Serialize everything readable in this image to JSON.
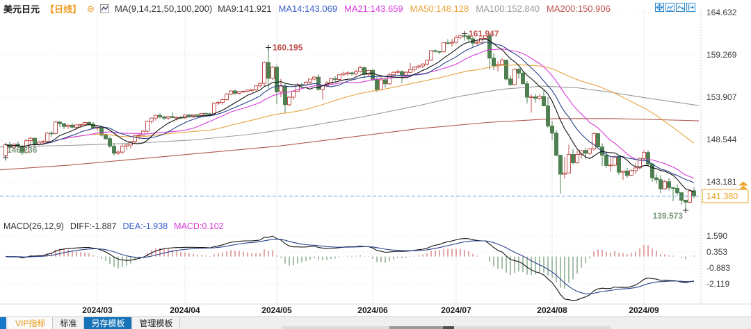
{
  "header": {
    "symbol": "美元日元",
    "period": "【日线】",
    "collapse_icon": "⊖",
    "ma_group_label": "MA(9,14,21,50,100,200)",
    "ma_values": [
      {
        "label": "MA9:141.921",
        "color": "#333333"
      },
      {
        "label": "MA14:143.069",
        "color": "#3a5fcd"
      },
      {
        "label": "MA21:143.659",
        "color": "#d93ad9"
      },
      {
        "label": "MA50:148.128",
        "color": "#e8a33c"
      },
      {
        "label": "MA100:152.840",
        "color": "#999999"
      },
      {
        "label": "MA200:150.906",
        "color": "#c0504d"
      }
    ]
  },
  "toolbar_icons": [
    "move-crosshair-icon",
    "indicator-pane-icon",
    "indicator-arrow-icon",
    "exit-pane-icon"
  ],
  "macd_header": {
    "items": [
      {
        "label": "MACD(26,12,9)",
        "color": "#333333"
      },
      {
        "label": "DIFF:-1.887",
        "color": "#333333"
      },
      {
        "label": "DEA:-1.938",
        "color": "#3a5fcd"
      },
      {
        "label": "MACD:0.102",
        "color": "#d93ad9"
      }
    ]
  },
  "tabs": {
    "items": [
      {
        "label": "VIP指标"
      },
      {
        "label": "标准"
      },
      {
        "label": "另存模板"
      },
      {
        "label": "管理模板"
      }
    ]
  },
  "chart_data": {
    "type": "candlestick",
    "title": "USD/JPY daily chart with MA(9,14,21,50,100,200) overlays and MACD(26,12,9) sub-chart",
    "y_axis_labels": [
      "164.632",
      "159.269",
      "153.907",
      "148.544",
      "143.181"
    ],
    "y_axis_values": [
      164.632,
      159.269,
      153.907,
      148.544,
      143.181
    ],
    "current_price": 141.38,
    "current_price_label": "141.380",
    "x_axis_labels": [
      "2024/03",
      "2024/04",
      "2024/05",
      "2024/06",
      "2024/07",
      "2024/08",
      "2024/09"
    ],
    "month_start_indices": [
      22,
      43,
      65,
      88,
      108,
      131,
      153
    ],
    "colors": {
      "up": "#c0504d",
      "down": "#4e8052",
      "price_line": "#5a9bd4",
      "price_box": "#e8a020",
      "annotation_high": "#c0504d",
      "annotation_low": "#7d9b7d"
    },
    "candles_ohlc": [
      [
        146.45,
        148.15,
        146.236,
        147.9
      ],
      [
        147.9,
        148.25,
        147.35,
        147.55
      ],
      [
        147.55,
        148.05,
        147.3,
        147.95
      ],
      [
        147.95,
        148.3,
        147.55,
        147.7
      ],
      [
        147.7,
        147.85,
        146.6,
        146.9
      ],
      [
        146.9,
        148.55,
        146.75,
        148.4
      ],
      [
        148.4,
        148.9,
        148.0,
        148.7
      ],
      [
        148.7,
        148.8,
        147.6,
        147.95
      ],
      [
        147.95,
        148.4,
        147.8,
        148.2
      ],
      [
        148.2,
        148.5,
        147.9,
        148.3
      ],
      [
        148.3,
        149.5,
        148.2,
        149.35
      ],
      [
        149.35,
        149.6,
        148.9,
        149.3
      ],
      [
        149.3,
        150.88,
        149.2,
        150.75
      ],
      [
        150.75,
        150.9,
        150.1,
        150.55
      ],
      [
        150.55,
        150.65,
        149.85,
        150.2
      ],
      [
        150.2,
        150.45,
        149.9,
        150.35
      ],
      [
        150.35,
        150.6,
        149.95,
        150.1
      ],
      [
        150.1,
        150.45,
        149.75,
        150.4
      ],
      [
        150.4,
        150.55,
        150.0,
        150.45
      ],
      [
        150.45,
        150.8,
        150.2,
        150.7
      ],
      [
        150.7,
        150.85,
        150.3,
        150.5
      ],
      [
        150.5,
        150.75,
        149.9,
        149.98
      ],
      [
        149.98,
        150.3,
        149.6,
        150.1
      ],
      [
        150.1,
        150.2,
        148.9,
        149.1
      ],
      [
        149.1,
        149.4,
        148.5,
        148.65
      ],
      [
        148.65,
        148.9,
        147.5,
        147.7
      ],
      [
        147.7,
        148.1,
        146.48,
        146.8
      ],
      [
        146.8,
        147.2,
        146.55,
        146.95
      ],
      [
        146.95,
        147.95,
        146.7,
        147.7
      ],
      [
        147.7,
        148.0,
        147.2,
        147.85
      ],
      [
        147.85,
        148.35,
        147.4,
        148.3
      ],
      [
        148.3,
        149.15,
        148.0,
        149.05
      ],
      [
        149.05,
        149.35,
        148.55,
        149.1
      ],
      [
        149.1,
        149.75,
        148.9,
        149.6
      ],
      [
        149.6,
        150.95,
        149.3,
        150.85
      ],
      [
        150.85,
        151.35,
        150.55,
        151.25
      ],
      [
        151.25,
        151.65,
        150.95,
        151.6
      ],
      [
        151.6,
        151.85,
        151.2,
        151.4
      ],
      [
        151.4,
        151.55,
        151.0,
        151.25
      ],
      [
        151.25,
        151.55,
        151.05,
        151.45
      ],
      [
        151.45,
        151.97,
        151.3,
        151.32
      ],
      [
        151.32,
        151.45,
        150.95,
        151.35
      ],
      [
        151.35,
        151.5,
        151.1,
        151.3
      ],
      [
        151.3,
        151.75,
        151.15,
        151.65
      ],
      [
        151.65,
        151.8,
        151.45,
        151.55
      ],
      [
        151.55,
        151.7,
        151.3,
        151.68
      ],
      [
        151.68,
        151.8,
        151.5,
        151.6
      ],
      [
        151.6,
        151.9,
        151.55,
        151.85
      ],
      [
        151.85,
        151.95,
        151.7,
        151.8
      ],
      [
        151.8,
        151.95,
        151.55,
        151.75
      ],
      [
        151.75,
        153.25,
        151.6,
        153.15
      ],
      [
        153.15,
        153.45,
        152.9,
        153.25
      ],
      [
        153.25,
        153.7,
        152.95,
        153.6
      ],
      [
        153.6,
        154.45,
        153.5,
        154.3
      ],
      [
        154.3,
        154.8,
        154.15,
        154.7
      ],
      [
        154.7,
        154.85,
        154.2,
        154.4
      ],
      [
        154.4,
        154.7,
        154.25,
        154.6
      ],
      [
        154.6,
        154.75,
        154.45,
        154.65
      ],
      [
        154.65,
        154.9,
        154.5,
        154.8
      ],
      [
        154.8,
        154.95,
        154.55,
        154.85
      ],
      [
        154.85,
        155.4,
        154.7,
        155.35
      ],
      [
        155.35,
        155.75,
        155.1,
        155.65
      ],
      [
        155.65,
        158.45,
        155.3,
        158.3
      ],
      [
        158.3,
        160.195,
        154.95,
        156.3
      ],
      [
        156.3,
        157.85,
        156.05,
        157.7
      ],
      [
        157.7,
        157.98,
        153.0,
        154.6
      ],
      [
        154.6,
        156.25,
        153.9,
        155.3
      ],
      [
        155.3,
        155.6,
        151.86,
        152.95
      ],
      [
        152.95,
        154.05,
        152.75,
        153.9
      ],
      [
        153.9,
        154.7,
        153.6,
        154.65
      ],
      [
        154.65,
        155.65,
        154.55,
        155.5
      ],
      [
        155.5,
        155.75,
        155.15,
        155.45
      ],
      [
        155.45,
        155.95,
        155.3,
        155.8
      ],
      [
        155.8,
        156.25,
        155.6,
        156.2
      ],
      [
        156.2,
        156.55,
        156.0,
        156.45
      ],
      [
        156.45,
        156.8,
        154.7,
        154.9
      ],
      [
        154.9,
        155.5,
        153.6,
        155.4
      ],
      [
        155.4,
        155.95,
        155.2,
        155.7
      ],
      [
        155.7,
        156.3,
        155.5,
        156.25
      ],
      [
        156.25,
        156.55,
        155.85,
        156.15
      ],
      [
        156.15,
        156.8,
        156.0,
        156.75
      ],
      [
        156.75,
        157.15,
        156.55,
        156.95
      ],
      [
        156.95,
        157.2,
        156.6,
        156.98
      ],
      [
        156.98,
        157.1,
        156.65,
        156.85
      ],
      [
        156.85,
        157.4,
        156.7,
        157.15
      ],
      [
        157.15,
        157.9,
        157.0,
        157.65
      ],
      [
        157.65,
        157.8,
        156.35,
        156.8
      ],
      [
        156.8,
        157.35,
        156.55,
        157.3
      ],
      [
        157.3,
        157.5,
        155.95,
        156.1
      ],
      [
        156.1,
        156.4,
        154.55,
        154.85
      ],
      [
        154.85,
        156.45,
        154.75,
        156.1
      ],
      [
        156.1,
        156.35,
        155.1,
        155.6
      ],
      [
        155.6,
        157.0,
        155.45,
        156.75
      ],
      [
        156.75,
        157.2,
        156.55,
        157.05
      ],
      [
        157.05,
        157.4,
        156.9,
        157.15
      ],
      [
        157.15,
        157.3,
        155.7,
        156.7
      ],
      [
        156.7,
        157.25,
        156.45,
        157.05
      ],
      [
        157.05,
        158.25,
        156.95,
        157.4
      ],
      [
        157.4,
        157.85,
        157.1,
        157.7
      ],
      [
        157.7,
        158.05,
        157.55,
        157.85
      ],
      [
        157.85,
        158.2,
        157.6,
        158.1
      ],
      [
        158.1,
        158.65,
        157.9,
        158.6
      ],
      [
        158.6,
        159.85,
        158.5,
        159.8
      ],
      [
        159.8,
        159.95,
        159.55,
        159.7
      ],
      [
        159.7,
        159.8,
        159.35,
        159.65
      ],
      [
        159.65,
        160.85,
        159.55,
        160.8
      ],
      [
        160.8,
        161.25,
        160.65,
        160.75
      ],
      [
        160.75,
        161.3,
        160.3,
        160.85
      ],
      [
        160.85,
        161.75,
        160.7,
        161.45
      ],
      [
        161.45,
        161.8,
        161.25,
        161.7
      ],
      [
        161.7,
        161.947,
        161.05,
        161.65
      ],
      [
        161.65,
        161.85,
        160.8,
        161.3
      ],
      [
        161.3,
        161.55,
        160.3,
        160.75
      ],
      [
        160.75,
        161.1,
        160.55,
        160.85
      ],
      [
        160.85,
        161.45,
        160.7,
        161.35
      ],
      [
        161.35,
        161.8,
        161.2,
        161.7
      ],
      [
        161.7,
        161.75,
        157.4,
        158.85
      ],
      [
        158.85,
        159.45,
        157.35,
        157.9
      ],
      [
        157.9,
        158.45,
        157.15,
        158.05
      ],
      [
        158.05,
        158.85,
        158.0,
        158.6
      ],
      [
        158.6,
        158.65,
        156.05,
        156.2
      ],
      [
        156.2,
        156.65,
        155.35,
        155.5
      ],
      [
        155.5,
        157.55,
        155.4,
        157.45
      ],
      [
        157.45,
        157.6,
        156.2,
        156.95
      ],
      [
        156.95,
        157.15,
        155.55,
        155.6
      ],
      [
        155.6,
        155.95,
        153.1,
        153.9
      ],
      [
        153.9,
        154.3,
        151.95,
        153.95
      ],
      [
        153.95,
        154.35,
        153.25,
        153.75
      ],
      [
        153.75,
        154.3,
        153.55,
        154.0
      ],
      [
        154.0,
        154.8,
        152.75,
        152.8
      ],
      [
        152.8,
        153.9,
        150.05,
        150.25
      ],
      [
        150.25,
        150.9,
        148.5,
        149.35
      ],
      [
        149.35,
        149.75,
        146.42,
        146.55
      ],
      [
        146.55,
        146.6,
        141.68,
        144.15
      ],
      [
        144.15,
        146.35,
        143.6,
        144.3
      ],
      [
        144.3,
        147.9,
        144.25,
        146.65
      ],
      [
        146.65,
        147.35,
        145.4,
        145.6
      ],
      [
        145.6,
        147.15,
        145.5,
        146.65
      ],
      [
        146.65,
        147.2,
        146.1,
        147.15
      ],
      [
        147.15,
        147.5,
        146.05,
        146.8
      ],
      [
        146.8,
        147.45,
        146.55,
        147.35
      ],
      [
        147.35,
        149.4,
        147.1,
        149.3
      ],
      [
        149.3,
        149.35,
        147.55,
        147.6
      ],
      [
        147.6,
        148.05,
        145.2,
        146.55
      ],
      [
        146.55,
        147.05,
        144.95,
        145.25
      ],
      [
        145.25,
        146.25,
        144.45,
        145.3
      ],
      [
        145.3,
        146.55,
        145.15,
        146.3
      ],
      [
        146.3,
        146.5,
        144.05,
        144.4
      ],
      [
        144.4,
        144.6,
        143.45,
        144.55
      ],
      [
        144.55,
        144.95,
        143.7,
        144.0
      ],
      [
        144.0,
        144.75,
        143.9,
        144.6
      ],
      [
        144.6,
        145.55,
        144.2,
        144.95
      ],
      [
        144.95,
        146.25,
        144.75,
        146.15
      ],
      [
        146.15,
        147.2,
        145.8,
        146.9
      ],
      [
        146.9,
        147.2,
        145.15,
        145.45
      ],
      [
        145.45,
        145.55,
        143.2,
        143.7
      ],
      [
        143.7,
        144.2,
        142.95,
        143.45
      ],
      [
        143.45,
        144.05,
        141.75,
        142.3
      ],
      [
        142.3,
        143.45,
        142.2,
        143.2
      ],
      [
        143.2,
        143.7,
        142.1,
        142.45
      ],
      [
        142.45,
        142.55,
        140.71,
        142.35
      ],
      [
        142.35,
        142.85,
        141.45,
        141.8
      ],
      [
        141.8,
        141.9,
        140.29,
        140.85
      ],
      [
        140.85,
        140.95,
        139.573,
        140.6
      ],
      [
        140.6,
        142.2,
        140.45,
        142.05
      ],
      [
        142.05,
        142.45,
        141.1,
        141.38
      ]
    ],
    "computed_ma": [
      {
        "period": 50,
        "color": "#e8a33c"
      },
      {
        "period": 21,
        "color": "#d93ad9"
      },
      {
        "period": 14,
        "color": "#26418c"
      },
      {
        "period": 9,
        "color": "#111111"
      }
    ],
    "ma_overlays": [
      {
        "name": "MA100",
        "color": "#999999",
        "points": [
          [
            0,
            147.6
          ],
          [
            100,
            147.8
          ],
          [
            200,
            148.1
          ],
          [
            280,
            148.5
          ],
          [
            360,
            149.2
          ],
          [
            440,
            150.2
          ],
          [
            520,
            151.4
          ],
          [
            600,
            152.8
          ],
          [
            660,
            154.0
          ],
          [
            720,
            154.9
          ],
          [
            780,
            155.3
          ],
          [
            830,
            155.1
          ],
          [
            880,
            154.5
          ],
          [
            930,
            153.8
          ],
          [
            1005,
            152.84
          ]
        ]
      },
      {
        "name": "MA200",
        "color": "#b0584e",
        "points": [
          [
            0,
            144.7
          ],
          [
            100,
            145.3
          ],
          [
            200,
            146.1
          ],
          [
            300,
            146.9
          ],
          [
            400,
            147.7
          ],
          [
            500,
            148.8
          ],
          [
            600,
            149.9
          ],
          [
            700,
            150.7
          ],
          [
            800,
            151.2
          ],
          [
            880,
            151.2
          ],
          [
            950,
            151.05
          ],
          [
            1005,
            150.91
          ]
        ]
      }
    ],
    "annotations": [
      {
        "index": 0,
        "price": 146.236,
        "label": "146.236",
        "kind": "low",
        "placement": "above-right"
      },
      {
        "index": 63,
        "price": 160.195,
        "label": "160.195",
        "kind": "high",
        "placement": "right"
      },
      {
        "index": 110,
        "price": 161.947,
        "label": "161.947",
        "kind": "high",
        "placement": "right"
      },
      {
        "index": 163,
        "price": 139.573,
        "label": "139.573",
        "kind": "low",
        "placement": "below-left"
      }
    ],
    "macd": {
      "params": [
        26,
        12,
        9
      ],
      "diff_color": "#111111",
      "dea_color": "#26418c",
      "hist_up_color": "#c0504d",
      "hist_down_color": "#4e8052",
      "y_axis_labels": [
        "1.590",
        "0.353",
        "-0.883",
        "-2.119"
      ],
      "y_axis_values": [
        1.59,
        0.353,
        -0.883,
        -2.119
      ]
    }
  }
}
